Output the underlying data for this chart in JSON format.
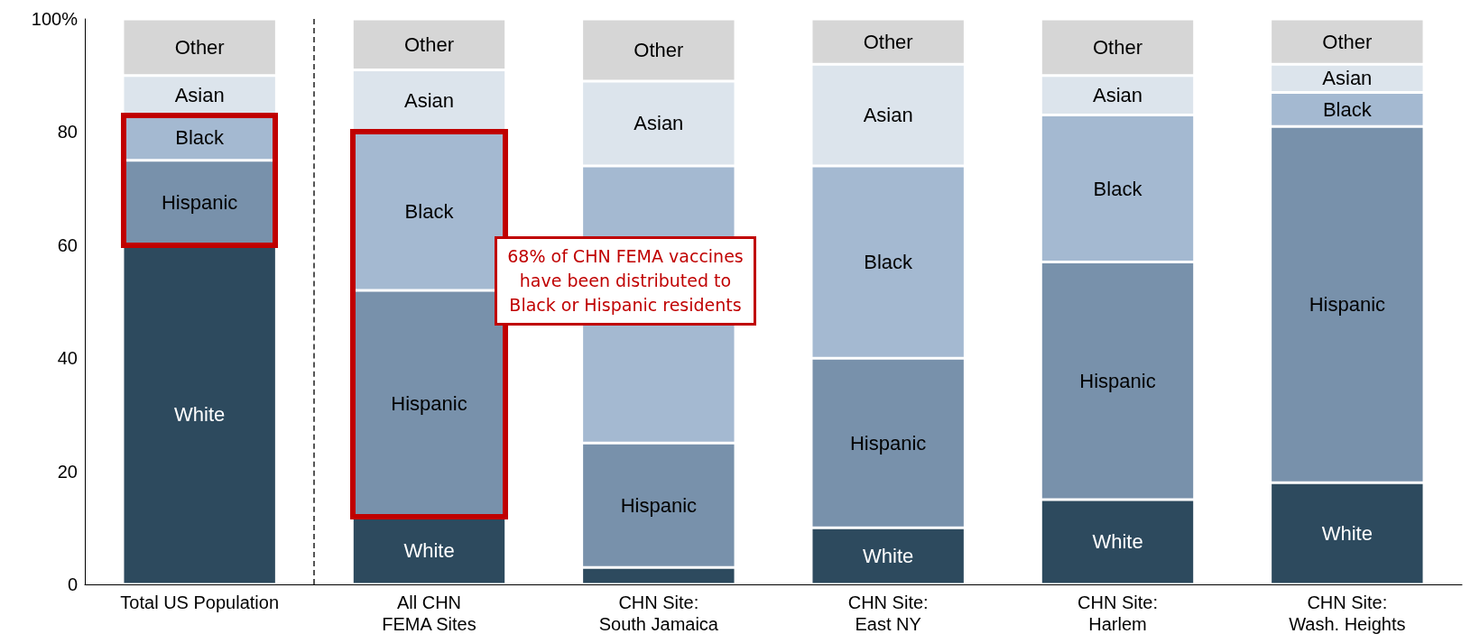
{
  "chart_data": {
    "type": "bar",
    "stacked": true,
    "categories": [
      "Total US Population",
      "All CHN\nFEMA Sites",
      "CHN Site:\nSouth Jamaica",
      "CHN Site:\nEast NY",
      "CHN Site:\nHarlem",
      "CHN Site:\nWash. Heights"
    ],
    "series": [
      {
        "name": "White",
        "color": "#2d4a5e",
        "values": [
          60,
          12,
          3,
          10,
          15,
          18
        ]
      },
      {
        "name": "Hispanic",
        "color": "#7891ab",
        "values": [
          15,
          40,
          22,
          30,
          42,
          63
        ]
      },
      {
        "name": "Black",
        "color": "#a4b9d1",
        "values": [
          8,
          28,
          49,
          34,
          26,
          6
        ]
      },
      {
        "name": "Asian",
        "color": "#dce4ec",
        "values": [
          7,
          11,
          15,
          18,
          7,
          5
        ]
      },
      {
        "name": "Other",
        "color": "#d6d6d6",
        "values": [
          10,
          9,
          11,
          8,
          10,
          8
        ]
      }
    ],
    "ylim": [
      0,
      100
    ],
    "yticks": [
      0,
      20,
      40,
      60,
      80,
      {
        "value": 100,
        "label": "100%"
      }
    ],
    "grid": false,
    "legend": false,
    "annotations": [
      "68% of CHN FEMA vaccines have been distributed to Black or Hispanic residents"
    ]
  }
}
